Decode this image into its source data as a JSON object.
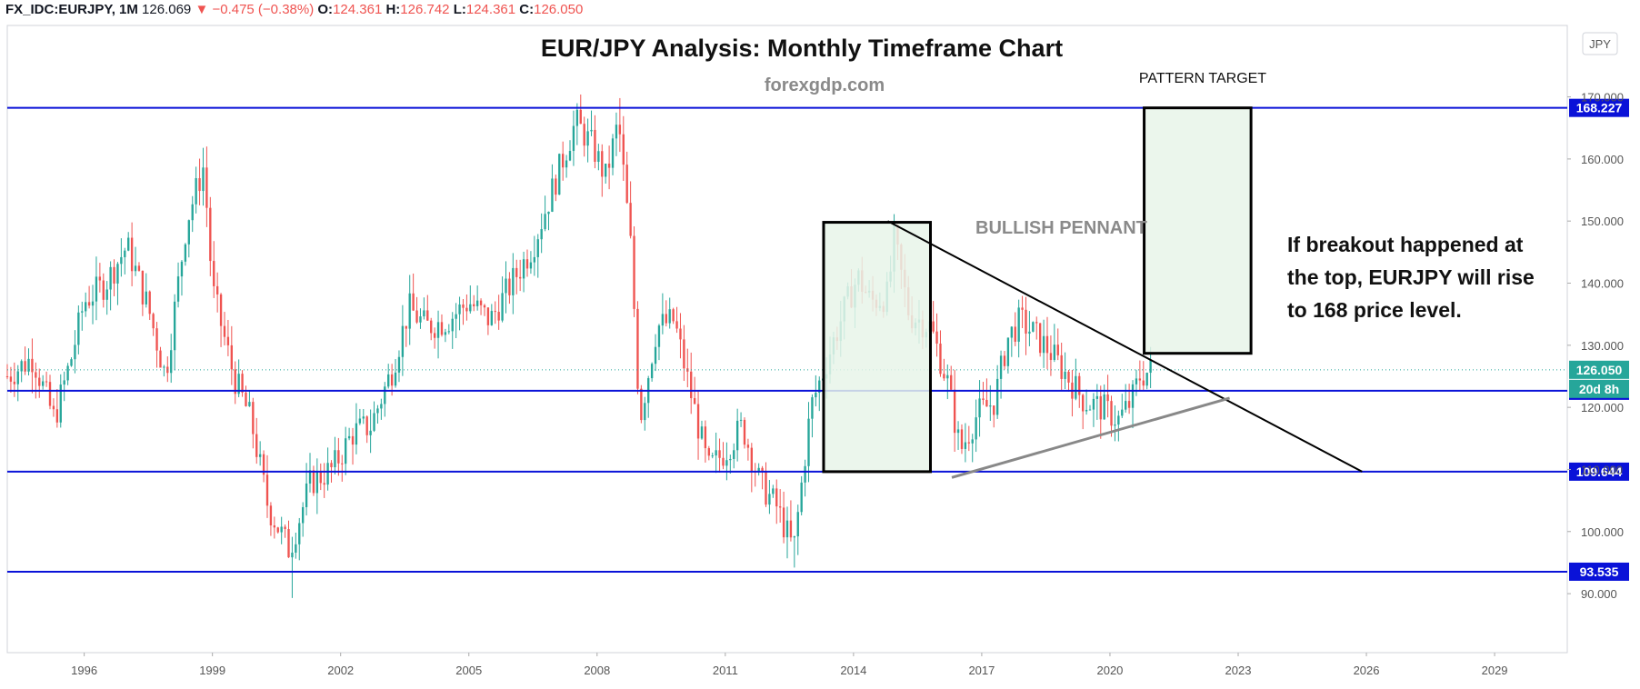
{
  "header": {
    "symbol": "FX_IDC:EURJPY, 1M",
    "last": "126.069",
    "change": "▼ −0.475 (−0.38%)",
    "o_label": "O:",
    "o_value": "124.361",
    "h_label": "H:",
    "h_value": "126.742",
    "l_label": "L:",
    "l_value": "124.361",
    "c_label": "C:",
    "c_value": "126.050"
  },
  "currency_button": "JPY",
  "colors": {
    "up": "#26a69a",
    "down": "#ef5350",
    "level": "#0a12d8",
    "box_fill": "#e8f5e9",
    "last_price": "#26a69a"
  },
  "chart_data": {
    "type": "candlestick",
    "title": "EUR/JPY Analysis: Monthly Timeframe Chart",
    "subtitle": "forexgdp.com",
    "xlim": [
      1994.2,
      2030.7
    ],
    "ylim": [
      80.5,
      181.5
    ],
    "x_ticks": [
      1996,
      1999,
      2002,
      2005,
      2008,
      2011,
      2014,
      2017,
      2020,
      2023,
      2026,
      2029
    ],
    "y_ticks": [
      90,
      100,
      110,
      120,
      130,
      140,
      150,
      160,
      170
    ],
    "y_tick_labels": [
      "90.000",
      "100.000",
      "110.000",
      "120.000",
      "130.000",
      "140.000",
      "150.000",
      "160.000",
      "170.000"
    ],
    "grid": false,
    "price_path": [
      [
        1994.2,
        125
      ],
      [
        1994.8,
        128
      ],
      [
        1995.3,
        118
      ],
      [
        1995.7,
        128
      ],
      [
        1996.0,
        137
      ],
      [
        1996.5,
        140
      ],
      [
        1997.0,
        146
      ],
      [
        1997.5,
        136
      ],
      [
        1997.9,
        125
      ],
      [
        1998.4,
        150
      ],
      [
        1998.8,
        159
      ],
      [
        1999.0,
        139
      ],
      [
        1999.5,
        125
      ],
      [
        1999.9,
        118
      ],
      [
        2000.3,
        104
      ],
      [
        2000.8,
        97
      ],
      [
        2001.3,
        108
      ],
      [
        2001.8,
        110
      ],
      [
        2002.3,
        116
      ],
      [
        2002.7,
        117
      ],
      [
        2003.2,
        126
      ],
      [
        2003.6,
        136
      ],
      [
        2004.0,
        133
      ],
      [
        2004.5,
        134
      ],
      [
        2005.0,
        137
      ],
      [
        2005.5,
        134
      ],
      [
        2006.0,
        140
      ],
      [
        2006.5,
        146
      ],
      [
        2007.0,
        156
      ],
      [
        2007.5,
        166
      ],
      [
        2007.9,
        162
      ],
      [
        2008.2,
        157
      ],
      [
        2008.5,
        166
      ],
      [
        2008.8,
        145
      ],
      [
        2009.0,
        118
      ],
      [
        2009.4,
        133
      ],
      [
        2009.8,
        134
      ],
      [
        2010.2,
        122
      ],
      [
        2010.6,
        110
      ],
      [
        2011.0,
        113
      ],
      [
        2011.4,
        117
      ],
      [
        2011.8,
        108
      ],
      [
        2012.2,
        104
      ],
      [
        2012.6,
        97
      ],
      [
        2013.0,
        120
      ],
      [
        2013.4,
        128
      ],
      [
        2013.8,
        136
      ],
      [
        2014.1,
        141
      ],
      [
        2014.4,
        137
      ],
      [
        2014.8,
        138
      ],
      [
        2014.95,
        147
      ],
      [
        2015.3,
        135
      ],
      [
        2015.8,
        133
      ],
      [
        2016.2,
        124
      ],
      [
        2016.5,
        113
      ],
      [
        2016.9,
        119
      ],
      [
        2017.3,
        121
      ],
      [
        2017.6,
        131
      ],
      [
        2017.9,
        134
      ],
      [
        2018.2,
        132
      ],
      [
        2018.6,
        129
      ],
      [
        2019.0,
        125
      ],
      [
        2019.4,
        121
      ],
      [
        2019.8,
        120
      ],
      [
        2020.2,
        118
      ],
      [
        2020.5,
        121
      ],
      [
        2020.7,
        125
      ],
      [
        2020.95,
        126
      ]
    ],
    "highlights": {
      "all_time_high": {
        "x": 2008.5,
        "y": 169.8
      },
      "low_2000": {
        "x": 2000.85,
        "y": 89.3
      },
      "low_2012": {
        "x": 2012.6,
        "y": 94.2
      }
    },
    "horizontal_levels": [
      {
        "value": 168.227,
        "label": "168.227"
      },
      {
        "value": 122.672,
        "label": "122.672"
      },
      {
        "value": 109.644,
        "label": "109.644"
      },
      {
        "value": 93.535,
        "label": "93.535"
      }
    ],
    "last_price": {
      "value": 126.05,
      "label": "126.050",
      "countdown": "20d 8h"
    },
    "trendlines": [
      {
        "name": "upper",
        "from": [
          2014.8,
          150
        ],
        "to": [
          2025.9,
          109.644
        ],
        "color": "#000000"
      },
      {
        "name": "lower",
        "from": [
          2016.3,
          108.7
        ],
        "to": [
          2022.8,
          121.5
        ],
        "color": "#888888"
      }
    ],
    "boxes": [
      {
        "name": "pennant-pole",
        "x": [
          2013.3,
          2015.8
        ],
        "y": [
          109.644,
          149.8
        ]
      },
      {
        "name": "pattern-target",
        "x": [
          2020.8,
          2023.3
        ],
        "y": [
          128.7,
          168.227
        ]
      }
    ],
    "annotations": {
      "pattern_target": "PATTERN TARGET",
      "bullish_pennant": "BULLISH PENNANT",
      "note_line1": "If breakout happened at",
      "note_line2": "the top, EURJPY will rise",
      "note_line3": "to 168 price level."
    }
  }
}
